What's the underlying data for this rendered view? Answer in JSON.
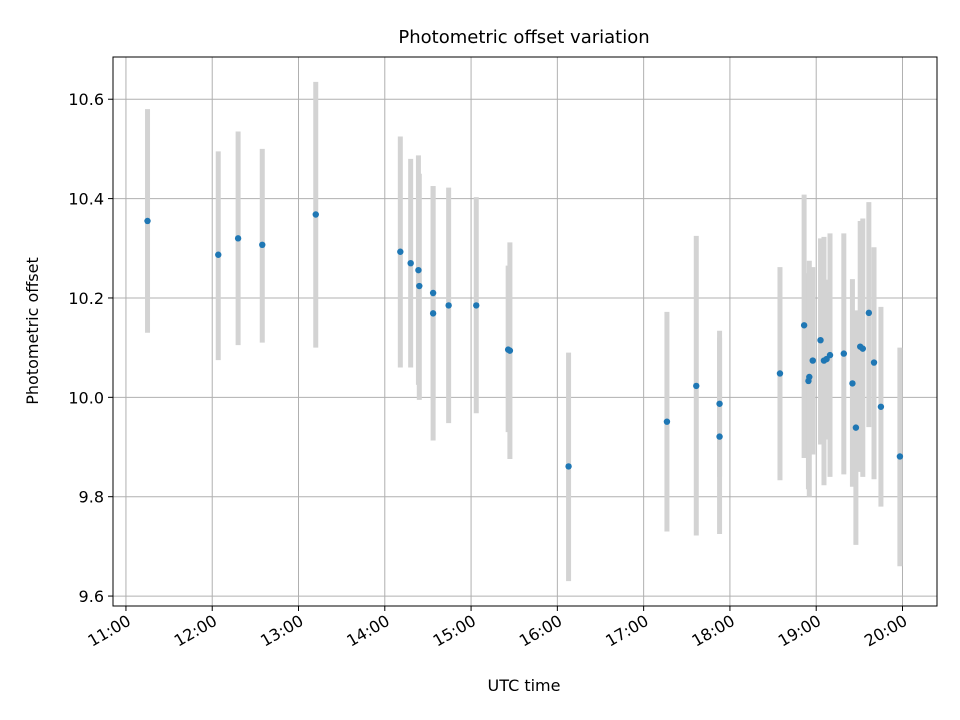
{
  "chart_data": {
    "type": "scatter",
    "title": "Photometric offset variation",
    "xlabel": "UTC time",
    "ylabel": "Photometric offset",
    "x_unit": "hours UTC",
    "xlim": [
      10.85,
      20.4
    ],
    "ylim": [
      9.58,
      10.685
    ],
    "x_ticks": [
      11,
      12,
      13,
      14,
      15,
      16,
      17,
      18,
      19,
      20
    ],
    "x_tick_labels": [
      "11:00",
      "12:00",
      "13:00",
      "14:00",
      "15:00",
      "16:00",
      "17:00",
      "18:00",
      "19:00",
      "20:00"
    ],
    "y_ticks": [
      9.6,
      9.8,
      10.0,
      10.2,
      10.4,
      10.6
    ],
    "y_tick_labels": [
      "9.6",
      "9.8",
      "10.0",
      "10.2",
      "10.4",
      "10.6"
    ],
    "grid": true,
    "point_color": "#1f77b4",
    "errorbar_color": "#d3d3d3",
    "points": [
      {
        "x": 11.25,
        "y": 10.355,
        "lo": 10.13,
        "hi": 10.58
      },
      {
        "x": 12.07,
        "y": 10.287,
        "lo": 10.075,
        "hi": 10.495
      },
      {
        "x": 12.3,
        "y": 10.32,
        "lo": 10.105,
        "hi": 10.535
      },
      {
        "x": 12.58,
        "y": 10.307,
        "lo": 10.11,
        "hi": 10.5
      },
      {
        "x": 13.2,
        "y": 10.368,
        "lo": 10.1,
        "hi": 10.635
      },
      {
        "x": 14.18,
        "y": 10.293,
        "lo": 10.06,
        "hi": 10.525
      },
      {
        "x": 14.3,
        "y": 10.27,
        "lo": 10.06,
        "hi": 10.48
      },
      {
        "x": 14.39,
        "y": 10.256,
        "lo": 10.025,
        "hi": 10.487
      },
      {
        "x": 14.4,
        "y": 10.224,
        "lo": 9.995,
        "hi": 10.45
      },
      {
        "x": 14.56,
        "y": 10.21,
        "lo": 9.995,
        "hi": 10.425
      },
      {
        "x": 14.56,
        "y": 10.169,
        "lo": 9.913,
        "hi": 10.425
      },
      {
        "x": 14.74,
        "y": 10.185,
        "lo": 9.948,
        "hi": 10.422
      },
      {
        "x": 15.06,
        "y": 10.185,
        "lo": 9.968,
        "hi": 10.403
      },
      {
        "x": 15.43,
        "y": 10.096,
        "lo": 9.93,
        "hi": 10.265
      },
      {
        "x": 15.45,
        "y": 10.094,
        "lo": 9.876,
        "hi": 10.312
      },
      {
        "x": 16.13,
        "y": 9.861,
        "lo": 9.63,
        "hi": 10.09
      },
      {
        "x": 17.27,
        "y": 9.951,
        "lo": 9.73,
        "hi": 10.172
      },
      {
        "x": 17.61,
        "y": 10.023,
        "lo": 9.722,
        "hi": 10.325
      },
      {
        "x": 17.88,
        "y": 9.987,
        "lo": 9.84,
        "hi": 10.134
      },
      {
        "x": 17.88,
        "y": 9.921,
        "lo": 9.725,
        "hi": 10.12
      },
      {
        "x": 18.58,
        "y": 10.048,
        "lo": 9.833,
        "hi": 10.262
      },
      {
        "x": 18.86,
        "y": 10.145,
        "lo": 9.878,
        "hi": 10.408
      },
      {
        "x": 18.91,
        "y": 10.033,
        "lo": 9.815,
        "hi": 10.25
      },
      {
        "x": 18.92,
        "y": 10.041,
        "lo": 9.8,
        "hi": 10.275
      },
      {
        "x": 18.96,
        "y": 10.074,
        "lo": 9.885,
        "hi": 10.262
      },
      {
        "x": 19.05,
        "y": 10.115,
        "lo": 9.905,
        "hi": 10.32
      },
      {
        "x": 19.09,
        "y": 10.074,
        "lo": 9.823,
        "hi": 10.323
      },
      {
        "x": 19.12,
        "y": 10.077,
        "lo": 9.915,
        "hi": 10.237
      },
      {
        "x": 19.16,
        "y": 10.085,
        "lo": 9.84,
        "hi": 10.33
      },
      {
        "x": 19.32,
        "y": 10.088,
        "lo": 9.845,
        "hi": 10.33
      },
      {
        "x": 19.42,
        "y": 10.028,
        "lo": 9.82,
        "hi": 10.238
      },
      {
        "x": 19.46,
        "y": 9.939,
        "lo": 9.703,
        "hi": 10.175
      },
      {
        "x": 19.51,
        "y": 10.102,
        "lo": 9.85,
        "hi": 10.355
      },
      {
        "x": 19.54,
        "y": 10.098,
        "lo": 9.84,
        "hi": 10.36
      },
      {
        "x": 19.61,
        "y": 10.17,
        "lo": 9.94,
        "hi": 10.393
      },
      {
        "x": 19.67,
        "y": 10.07,
        "lo": 9.835,
        "hi": 10.302
      },
      {
        "x": 19.75,
        "y": 9.981,
        "lo": 9.78,
        "hi": 10.182
      },
      {
        "x": 19.97,
        "y": 9.881,
        "lo": 9.66,
        "hi": 10.1
      }
    ]
  }
}
